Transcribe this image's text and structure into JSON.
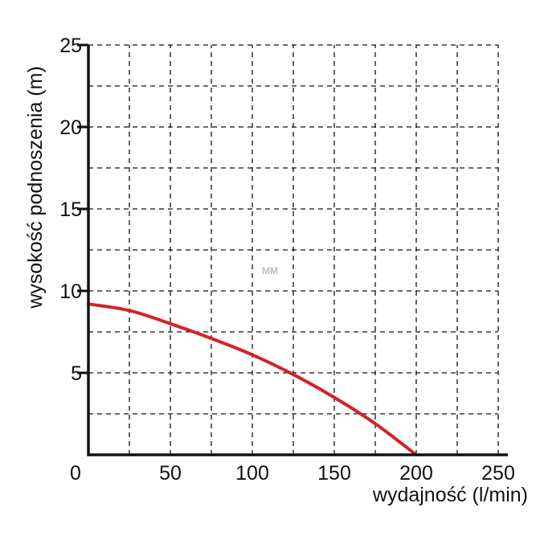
{
  "chart_data": {
    "type": "line",
    "xlabel": "wydajność (l/min)",
    "ylabel": "wysokość podnoszenia (m)",
    "xlim": [
      0,
      250
    ],
    "ylim": [
      0,
      25
    ],
    "x_ticks": [
      0,
      50,
      100,
      150,
      200,
      250
    ],
    "y_ticks": [
      5,
      10,
      15,
      20,
      25
    ],
    "grid": true,
    "grid_step_x": 25,
    "grid_step_y": 2.5,
    "series": [
      {
        "color": "#d62027",
        "x": [
          0,
          25,
          50,
          75,
          100,
          125,
          150,
          175,
          200
        ],
        "y": [
          9.2,
          8.8,
          8.0,
          7.1,
          6.1,
          4.9,
          3.5,
          1.9,
          0
        ]
      }
    ],
    "watermark": "MM"
  }
}
